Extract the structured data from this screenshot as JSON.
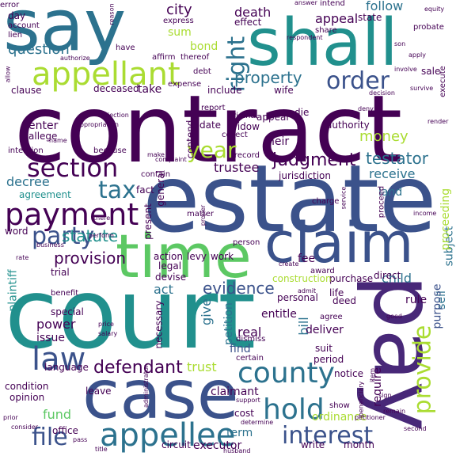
{
  "palette": {
    "purple": "#440154",
    "indigo": "#3b528b",
    "blue": "#2c728e",
    "teal": "#21908d",
    "green": "#27ad81",
    "lime": "#5cc863",
    "yellow": "#aadc32"
  },
  "words": [
    {
      "text": "contract",
      "color": "#440154",
      "vertical": false
    },
    {
      "text": "estate",
      "color": "#3b528b",
      "vertical": false
    },
    {
      "text": "court",
      "color": "#21908d",
      "vertical": false
    },
    {
      "text": "say",
      "color": "#2c728e",
      "vertical": false
    },
    {
      "text": "shall",
      "color": "#21908d",
      "vertical": false
    },
    {
      "text": "case",
      "color": "#3b528b",
      "vertical": false
    },
    {
      "text": "pay",
      "color": "#482878",
      "vertical": true
    },
    {
      "text": "time",
      "color": "#5cc863",
      "vertical": false
    },
    {
      "text": "claim",
      "color": "#3b528b",
      "vertical": false
    },
    {
      "text": "appellant",
      "color": "#aadc32",
      "vertical": false
    },
    {
      "text": "appellee",
      "color": "#2c728e",
      "vertical": false
    },
    {
      "text": "payment",
      "color": "#440154",
      "vertical": false
    },
    {
      "text": "section",
      "color": "#440154",
      "vertical": false
    },
    {
      "text": "county",
      "color": "#2c728e",
      "vertical": false
    },
    {
      "text": "interest",
      "color": "#3b528b",
      "vertical": false
    },
    {
      "text": "law",
      "color": "#3b528b",
      "vertical": false
    },
    {
      "text": "hold",
      "color": "#2c728e",
      "vertical": false
    },
    {
      "text": "party",
      "color": "#3b528b",
      "vertical": false
    },
    {
      "text": "provide",
      "color": "#aadc32",
      "vertical": true
    },
    {
      "text": "order",
      "color": "#3b528b",
      "vertical": false
    },
    {
      "text": "right",
      "color": "#2c728e",
      "vertical": true
    },
    {
      "text": "tax",
      "color": "#2c728e",
      "vertical": false
    },
    {
      "text": "file",
      "color": "#3b528b",
      "vertical": false
    },
    {
      "text": "year",
      "color": "#aadc32",
      "vertical": false
    },
    {
      "text": "judgment",
      "color": "#440154",
      "vertical": false
    },
    {
      "text": "testator",
      "color": "#2c728e",
      "vertical": false
    },
    {
      "text": "defendant",
      "color": "#440154",
      "vertical": false
    },
    {
      "text": "statute",
      "color": "#21908d",
      "vertical": false
    },
    {
      "text": "property",
      "color": "#2c728e",
      "vertical": false
    },
    {
      "text": "evidence",
      "color": "#3b528b",
      "vertical": false
    },
    {
      "text": "provision",
      "color": "#440154",
      "vertical": false
    },
    {
      "text": "question",
      "color": "#2c728e",
      "vertical": false
    },
    {
      "text": "city",
      "color": "#440154",
      "vertical": false
    },
    {
      "text": "death",
      "color": "#440154",
      "vertical": false
    },
    {
      "text": "appeal",
      "color": "#440154",
      "vertical": false
    },
    {
      "text": "follow",
      "color": "#2c728e",
      "vertical": false
    },
    {
      "text": "money",
      "color": "#aadc32",
      "vertical": false
    },
    {
      "text": "trustee",
      "color": "#440154",
      "vertical": false
    },
    {
      "text": "receive",
      "color": "#2c728e",
      "vertical": false
    },
    {
      "text": "child",
      "color": "#2c728e",
      "vertical": false
    },
    {
      "text": "power",
      "color": "#440154",
      "vertical": false
    },
    {
      "text": "fund",
      "color": "#5cc863",
      "vertical": false
    },
    {
      "text": "term",
      "color": "#2c728e",
      "vertical": false
    },
    {
      "text": "decree",
      "color": "#2c728e",
      "vertical": false
    },
    {
      "text": "trust",
      "color": "#aadc32",
      "vertical": false
    },
    {
      "text": "real",
      "color": "#440154",
      "vertical": false
    },
    {
      "text": "give",
      "color": "#2c728e",
      "vertical": true
    },
    {
      "text": "act",
      "color": "#2c728e",
      "vertical": false
    },
    {
      "text": "bill",
      "color": "#2c728e",
      "vertical": true
    },
    {
      "text": "sum",
      "color": "#aadc32",
      "vertical": false
    },
    {
      "text": "bond",
      "color": "#aadc32",
      "vertical": false
    },
    {
      "text": "heir",
      "color": "#440154",
      "vertical": false
    },
    {
      "text": "fee",
      "color": "#440154",
      "vertical": false
    },
    {
      "text": "rule",
      "color": "#440154",
      "vertical": false
    },
    {
      "text": "require",
      "color": "#440154",
      "vertical": true
    },
    {
      "text": "deliver",
      "color": "#440154",
      "vertical": false
    },
    {
      "text": "find",
      "color": "#3b528b",
      "vertical": false
    },
    {
      "text": "entitle",
      "color": "#440154",
      "vertical": false
    },
    {
      "text": "claimant",
      "color": "#440154",
      "vertical": false
    },
    {
      "text": "executor",
      "color": "#440154",
      "vertical": false
    },
    {
      "text": "ordinance",
      "color": "#aadc32",
      "vertical": false
    },
    {
      "text": "sell",
      "color": "#2c728e",
      "vertical": true
    },
    {
      "text": "purpose",
      "color": "#3b528b",
      "vertical": true
    },
    {
      "text": "subject",
      "color": "#2c728e",
      "vertical": true
    },
    {
      "text": "proceeding",
      "color": "#aadc32",
      "vertical": true
    },
    {
      "text": "plaintiff",
      "color": "#21908d",
      "vertical": true
    },
    {
      "text": "petition",
      "color": "#2c728e",
      "vertical": true
    },
    {
      "text": "issue",
      "color": "#440154",
      "vertical": false
    },
    {
      "text": "special",
      "color": "#440154",
      "vertical": false
    },
    {
      "text": "opinion",
      "color": "#440154",
      "vertical": false
    },
    {
      "text": "enter",
      "color": "#440154",
      "vertical": false
    },
    {
      "text": "allege",
      "color": "#440154",
      "vertical": false
    },
    {
      "text": "take",
      "color": "#440154",
      "vertical": false
    },
    {
      "text": "date",
      "color": "#440154",
      "vertical": false
    },
    {
      "text": "fact",
      "color": "#440154",
      "vertical": false
    },
    {
      "text": "agreement",
      "color": "#21908d",
      "vertical": false
    },
    {
      "text": "word",
      "color": "#440154",
      "vertical": false
    },
    {
      "text": "trial",
      "color": "#440154",
      "vertical": false
    },
    {
      "text": "land",
      "color": "#2c728e",
      "vertical": false
    },
    {
      "text": "personal",
      "color": "#440154",
      "vertical": false
    },
    {
      "text": "purchase",
      "color": "#440154",
      "vertical": false
    },
    {
      "text": "direct",
      "color": "#440154",
      "vertical": false
    },
    {
      "text": "work",
      "color": "#440154",
      "vertical": false
    },
    {
      "text": "action",
      "color": "#440154",
      "vertical": false
    },
    {
      "text": "levy",
      "color": "#440154",
      "vertical": false
    },
    {
      "text": "legal",
      "color": "#440154",
      "vertical": false
    },
    {
      "text": "devise",
      "color": "#440154",
      "vertical": false
    },
    {
      "text": "construction",
      "color": "#aadc32",
      "vertical": false
    },
    {
      "text": "deed",
      "color": "#440154",
      "vertical": false
    },
    {
      "text": "life",
      "color": "#440154",
      "vertical": false
    },
    {
      "text": "award",
      "color": "#440154",
      "vertical": false
    },
    {
      "text": "suit",
      "color": "#440154",
      "vertical": false
    },
    {
      "text": "period",
      "color": "#440154",
      "vertical": false
    },
    {
      "text": "agree",
      "color": "#440154",
      "vertical": false
    },
    {
      "text": "notice",
      "color": "#440154",
      "vertical": false
    },
    {
      "text": "month",
      "color": "#440154",
      "vertical": false
    },
    {
      "text": "show",
      "color": "#440154",
      "vertical": false
    },
    {
      "text": "cost",
      "color": "#440154",
      "vertical": false
    },
    {
      "text": "write",
      "color": "#440154",
      "vertical": false
    },
    {
      "text": "leave",
      "color": "#440154",
      "vertical": false
    },
    {
      "text": "language",
      "color": "#440154",
      "vertical": false
    },
    {
      "text": "condition",
      "color": "#440154",
      "vertical": false
    },
    {
      "text": "office",
      "color": "#440154",
      "vertical": false
    },
    {
      "text": "circuit",
      "color": "#440154",
      "vertical": false
    },
    {
      "text": "certain",
      "color": "#440154",
      "vertical": false
    },
    {
      "text": "dismiss",
      "color": "#440154",
      "vertical": false
    },
    {
      "text": "benefit",
      "color": "#440154",
      "vertical": false
    },
    {
      "text": "necessary",
      "color": "#440154",
      "vertical": true
    },
    {
      "text": "present",
      "color": "#440154",
      "vertical": true
    },
    {
      "text": "general",
      "color": "#440154",
      "vertical": true
    },
    {
      "text": "contend",
      "color": "#440154",
      "vertical": true
    },
    {
      "text": "jurisdiction",
      "color": "#440154",
      "vertical": false
    },
    {
      "text": "record",
      "color": "#440154",
      "vertical": false
    },
    {
      "text": "widow",
      "color": "#440154",
      "vertical": false
    },
    {
      "text": "appear",
      "color": "#440154",
      "vertical": false
    },
    {
      "text": "die",
      "color": "#440154",
      "vertical": false
    },
    {
      "text": "authority",
      "color": "#440154",
      "vertical": false
    },
    {
      "text": "deceased",
      "color": "#440154",
      "vertical": false
    },
    {
      "text": "clause",
      "color": "#440154",
      "vertical": false
    },
    {
      "text": "report",
      "color": "#440154",
      "vertical": false
    },
    {
      "text": "wife",
      "color": "#440154",
      "vertical": false
    },
    {
      "text": "include",
      "color": "#440154",
      "vertical": false
    },
    {
      "text": "effect",
      "color": "#440154",
      "vertical": false
    },
    {
      "text": "account",
      "color": "#440154",
      "vertical": false
    },
    {
      "text": "day",
      "color": "#440154",
      "vertical": false
    },
    {
      "text": "lien",
      "color": "#440154",
      "vertical": false
    },
    {
      "text": "have",
      "color": "#440154",
      "vertical": false
    },
    {
      "text": "affirm",
      "color": "#440154",
      "vertical": false
    },
    {
      "text": "thereof",
      "color": "#440154",
      "vertical": false
    },
    {
      "text": "express",
      "color": "#440154",
      "vertical": false
    },
    {
      "text": "intend",
      "color": "#440154",
      "vertical": false
    },
    {
      "text": "share",
      "color": "#440154",
      "vertical": false
    },
    {
      "text": "state",
      "color": "#440154",
      "vertical": false
    },
    {
      "text": "probate",
      "color": "#440154",
      "vertical": false
    },
    {
      "text": "sale",
      "color": "#440154",
      "vertical": false
    },
    {
      "text": "charge",
      "color": "#440154",
      "vertical": false
    },
    {
      "text": "because",
      "color": "#440154",
      "vertical": false
    },
    {
      "text": "intention",
      "color": "#440154",
      "vertical": false
    },
    {
      "text": "expense",
      "color": "#440154",
      "vertical": false
    },
    {
      "text": "debt",
      "color": "#440154",
      "vertical": false
    },
    {
      "text": "matter",
      "color": "#440154",
      "vertical": false
    },
    {
      "text": "person",
      "color": "#440154",
      "vertical": false
    },
    {
      "text": "contain",
      "color": "#440154",
      "vertical": false
    },
    {
      "text": "collect",
      "color": "#440154",
      "vertical": false
    },
    {
      "text": "original",
      "color": "#440154",
      "vertical": false
    },
    {
      "text": "make",
      "color": "#440154",
      "vertical": false
    },
    {
      "text": "name",
      "color": "#440154",
      "vertical": false
    },
    {
      "text": "error",
      "color": "#440154",
      "vertical": false
    },
    {
      "text": "authorize",
      "color": "#440154",
      "vertical": false
    },
    {
      "text": "answer",
      "color": "#440154",
      "vertical": false
    },
    {
      "text": "sign",
      "color": "#440154",
      "vertical": false
    },
    {
      "text": "determine",
      "color": "#440154",
      "vertical": false
    },
    {
      "text": "husband",
      "color": "#440154",
      "vertical": false
    },
    {
      "text": "title",
      "color": "#440154",
      "vertical": false
    },
    {
      "text": "pass",
      "color": "#440154",
      "vertical": false
    },
    {
      "text": "prior",
      "color": "#440154",
      "vertical": false
    },
    {
      "text": "consider",
      "color": "#440154",
      "vertical": false
    },
    {
      "text": "support",
      "color": "#440154",
      "vertical": false
    },
    {
      "text": "second",
      "color": "#440154",
      "vertical": false
    },
    {
      "text": "remain",
      "color": "#440154",
      "vertical": false
    },
    {
      "text": "there",
      "color": "#440154",
      "vertical": false
    },
    {
      "text": "perform",
      "color": "#440154",
      "vertical": false
    },
    {
      "text": "business",
      "color": "#440154",
      "vertical": false
    },
    {
      "text": "price",
      "color": "#440154",
      "vertical": false
    },
    {
      "text": "salary",
      "color": "#440154",
      "vertical": false
    },
    {
      "text": "admit",
      "color": "#440154",
      "vertical": false
    },
    {
      "text": "good",
      "color": "#440154",
      "vertical": false
    },
    {
      "text": "create",
      "color": "#440154",
      "vertical": false
    },
    {
      "text": "proceed",
      "color": "#440154",
      "vertical": true
    },
    {
      "text": "service",
      "color": "#440154",
      "vertical": true
    },
    {
      "text": "execute",
      "color": "#440154",
      "vertical": true
    },
    {
      "text": "income",
      "color": "#440154",
      "vertical": false
    },
    {
      "text": "render",
      "color": "#440154",
      "vertical": false
    },
    {
      "text": "involve",
      "color": "#440154",
      "vertical": false
    },
    {
      "text": "apply",
      "color": "#440154",
      "vertical": false
    },
    {
      "text": "son",
      "color": "#440154",
      "vertical": false
    },
    {
      "text": "survive",
      "color": "#440154",
      "vertical": false
    },
    {
      "text": "equity",
      "color": "#440154",
      "vertical": false
    },
    {
      "text": "decision",
      "color": "#440154",
      "vertical": false
    },
    {
      "text": "deny",
      "color": "#440154",
      "vertical": false
    },
    {
      "text": "item",
      "color": "#440154",
      "vertical": true
    },
    {
      "text": "proper",
      "color": "#440154",
      "vertical": true
    },
    {
      "text": "allow",
      "color": "#440154",
      "vertical": true
    },
    {
      "text": "respondent",
      "color": "#440154",
      "vertical": false
    },
    {
      "text": "reason",
      "color": "#440154",
      "vertical": true
    },
    {
      "text": "objection",
      "color": "#440154",
      "vertical": false
    },
    {
      "text": "appropriation",
      "color": "#440154",
      "vertical": false
    },
    {
      "text": "complaint",
      "color": "#440154",
      "vertical": false
    },
    {
      "text": "administrator",
      "color": "#440154",
      "vertical": true
    },
    {
      "text": "beneficiary",
      "color": "#440154",
      "vertical": true
    },
    {
      "text": "petitioner",
      "color": "#440154",
      "vertical": false
    },
    {
      "text": "rate",
      "color": "#440154",
      "vertical": false
    }
  ]
}
